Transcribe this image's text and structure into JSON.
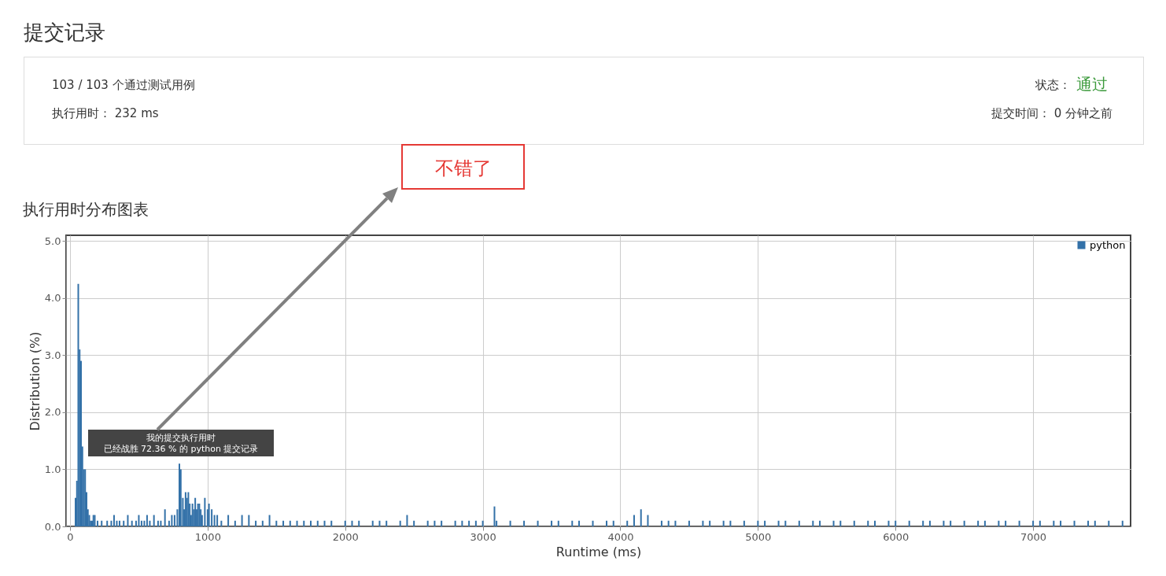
{
  "chart_data": {
    "type": "bar",
    "title": "执行用时分布图表",
    "xlabel": "Runtime (ms)",
    "ylabel": "Distribution (%)",
    "xlim": [
      0,
      7680
    ],
    "xticks": [
      0,
      1000,
      2000,
      3000,
      4000,
      5000,
      6000,
      7000
    ],
    "ylim": [
      0,
      5.1
    ],
    "yticks": [
      {
        "value": 0,
        "label": "0.0"
      },
      {
        "value": 1,
        "label": "1.0"
      },
      {
        "value": 2,
        "label": "2.0"
      },
      {
        "value": 3,
        "label": "3.0"
      },
      {
        "value": 4,
        "label": "4.0"
      },
      {
        "value": 5,
        "label": "5.0"
      }
    ],
    "grid": true,
    "legend": "top right",
    "x": [
      40,
      50,
      60,
      70,
      80,
      90,
      100,
      110,
      120,
      130,
      140,
      150,
      160,
      170,
      180,
      200,
      230,
      270,
      300,
      320,
      340,
      360,
      390,
      420,
      450,
      480,
      500,
      520,
      540,
      560,
      580,
      610,
      640,
      660,
      690,
      720,
      740,
      760,
      780,
      795,
      805,
      820,
      830,
      840,
      850,
      860,
      870,
      880,
      890,
      900,
      910,
      920,
      930,
      940,
      950,
      960,
      980,
      1000,
      1010,
      1030,
      1050,
      1070,
      1100,
      1150,
      1200,
      1250,
      1300,
      1350,
      1400,
      1450,
      1500,
      1550,
      1600,
      1650,
      1700,
      1750,
      1800,
      1850,
      1900,
      2000,
      2050,
      2100,
      2200,
      2250,
      2300,
      2400,
      2450,
      2500,
      2600,
      2650,
      2700,
      2800,
      2850,
      2900,
      2950,
      3000,
      3085,
      3100,
      3200,
      3300,
      3400,
      3500,
      3550,
      3650,
      3700,
      3800,
      3900,
      3950,
      4050,
      4100,
      4150,
      4200,
      4300,
      4350,
      4400,
      4500,
      4600,
      4650,
      4750,
      4800,
      4900,
      5000,
      5050,
      5150,
      5200,
      5300,
      5400,
      5450,
      5550,
      5600,
      5700,
      5800,
      5850,
      5950,
      6000,
      6100,
      6200,
      6250,
      6350,
      6400,
      6500,
      6600,
      6650,
      6750,
      6800,
      6900,
      7000,
      7050,
      7150,
      7200,
      7300,
      7400,
      7450,
      7550,
      7650
    ],
    "series": [
      {
        "name": "python",
        "color": "#3371a8",
        "values": [
          0.5,
          0.8,
          4.25,
          3.1,
          2.9,
          1.4,
          1.0,
          1.0,
          0.6,
          0.3,
          0.2,
          0.1,
          0.1,
          0.2,
          0.2,
          0.1,
          0.1,
          0.1,
          0.1,
          0.2,
          0.1,
          0.1,
          0.1,
          0.2,
          0.1,
          0.1,
          0.2,
          0.1,
          0.1,
          0.2,
          0.1,
          0.2,
          0.1,
          0.1,
          0.3,
          0.1,
          0.2,
          0.2,
          0.3,
          1.1,
          1.0,
          0.5,
          0.3,
          0.6,
          0.5,
          0.6,
          0.4,
          0.2,
          0.4,
          0.3,
          0.5,
          0.3,
          0.4,
          0.4,
          0.3,
          0.2,
          0.5,
          0.3,
          0.4,
          0.3,
          0.2,
          0.2,
          0.1,
          0.2,
          0.1,
          0.2,
          0.2,
          0.1,
          0.1,
          0.2,
          0.1,
          0.1,
          0.1,
          0.1,
          0.1,
          0.1,
          0.1,
          0.1,
          0.1,
          0.1,
          0.1,
          0.1,
          0.1,
          0.1,
          0.1,
          0.1,
          0.2,
          0.1,
          0.1,
          0.1,
          0.1,
          0.1,
          0.1,
          0.1,
          0.1,
          0.1,
          0.35,
          0.1,
          0.1,
          0.1,
          0.1,
          0.1,
          0.1,
          0.1,
          0.1,
          0.1,
          0.1,
          0.1,
          0.1,
          0.2,
          0.3,
          0.2,
          0.1,
          0.1,
          0.1,
          0.1,
          0.1,
          0.1,
          0.1,
          0.1,
          0.1,
          0.1,
          0.1,
          0.1,
          0.1,
          0.1,
          0.1,
          0.1,
          0.1,
          0.1,
          0.1,
          0.1,
          0.1,
          0.1,
          0.1,
          0.1,
          0.1,
          0.1,
          0.1,
          0.1,
          0.1,
          0.1,
          0.1,
          0.1,
          0.1,
          0.1,
          0.1,
          0.1,
          0.1,
          0.1,
          0.1,
          0.1,
          0.1,
          0.1,
          0.1
        ]
      }
    ],
    "annotations": [
      "提交记录",
      "103 / 103 个通过测试用例",
      "执行用时： 232 ms",
      "状态：",
      "通过",
      "提交时间： 0 分钟之前",
      "我的提交执行用时",
      "已经战胜 72.36 % 的 python 提交记录",
      "不错了"
    ]
  }
}
